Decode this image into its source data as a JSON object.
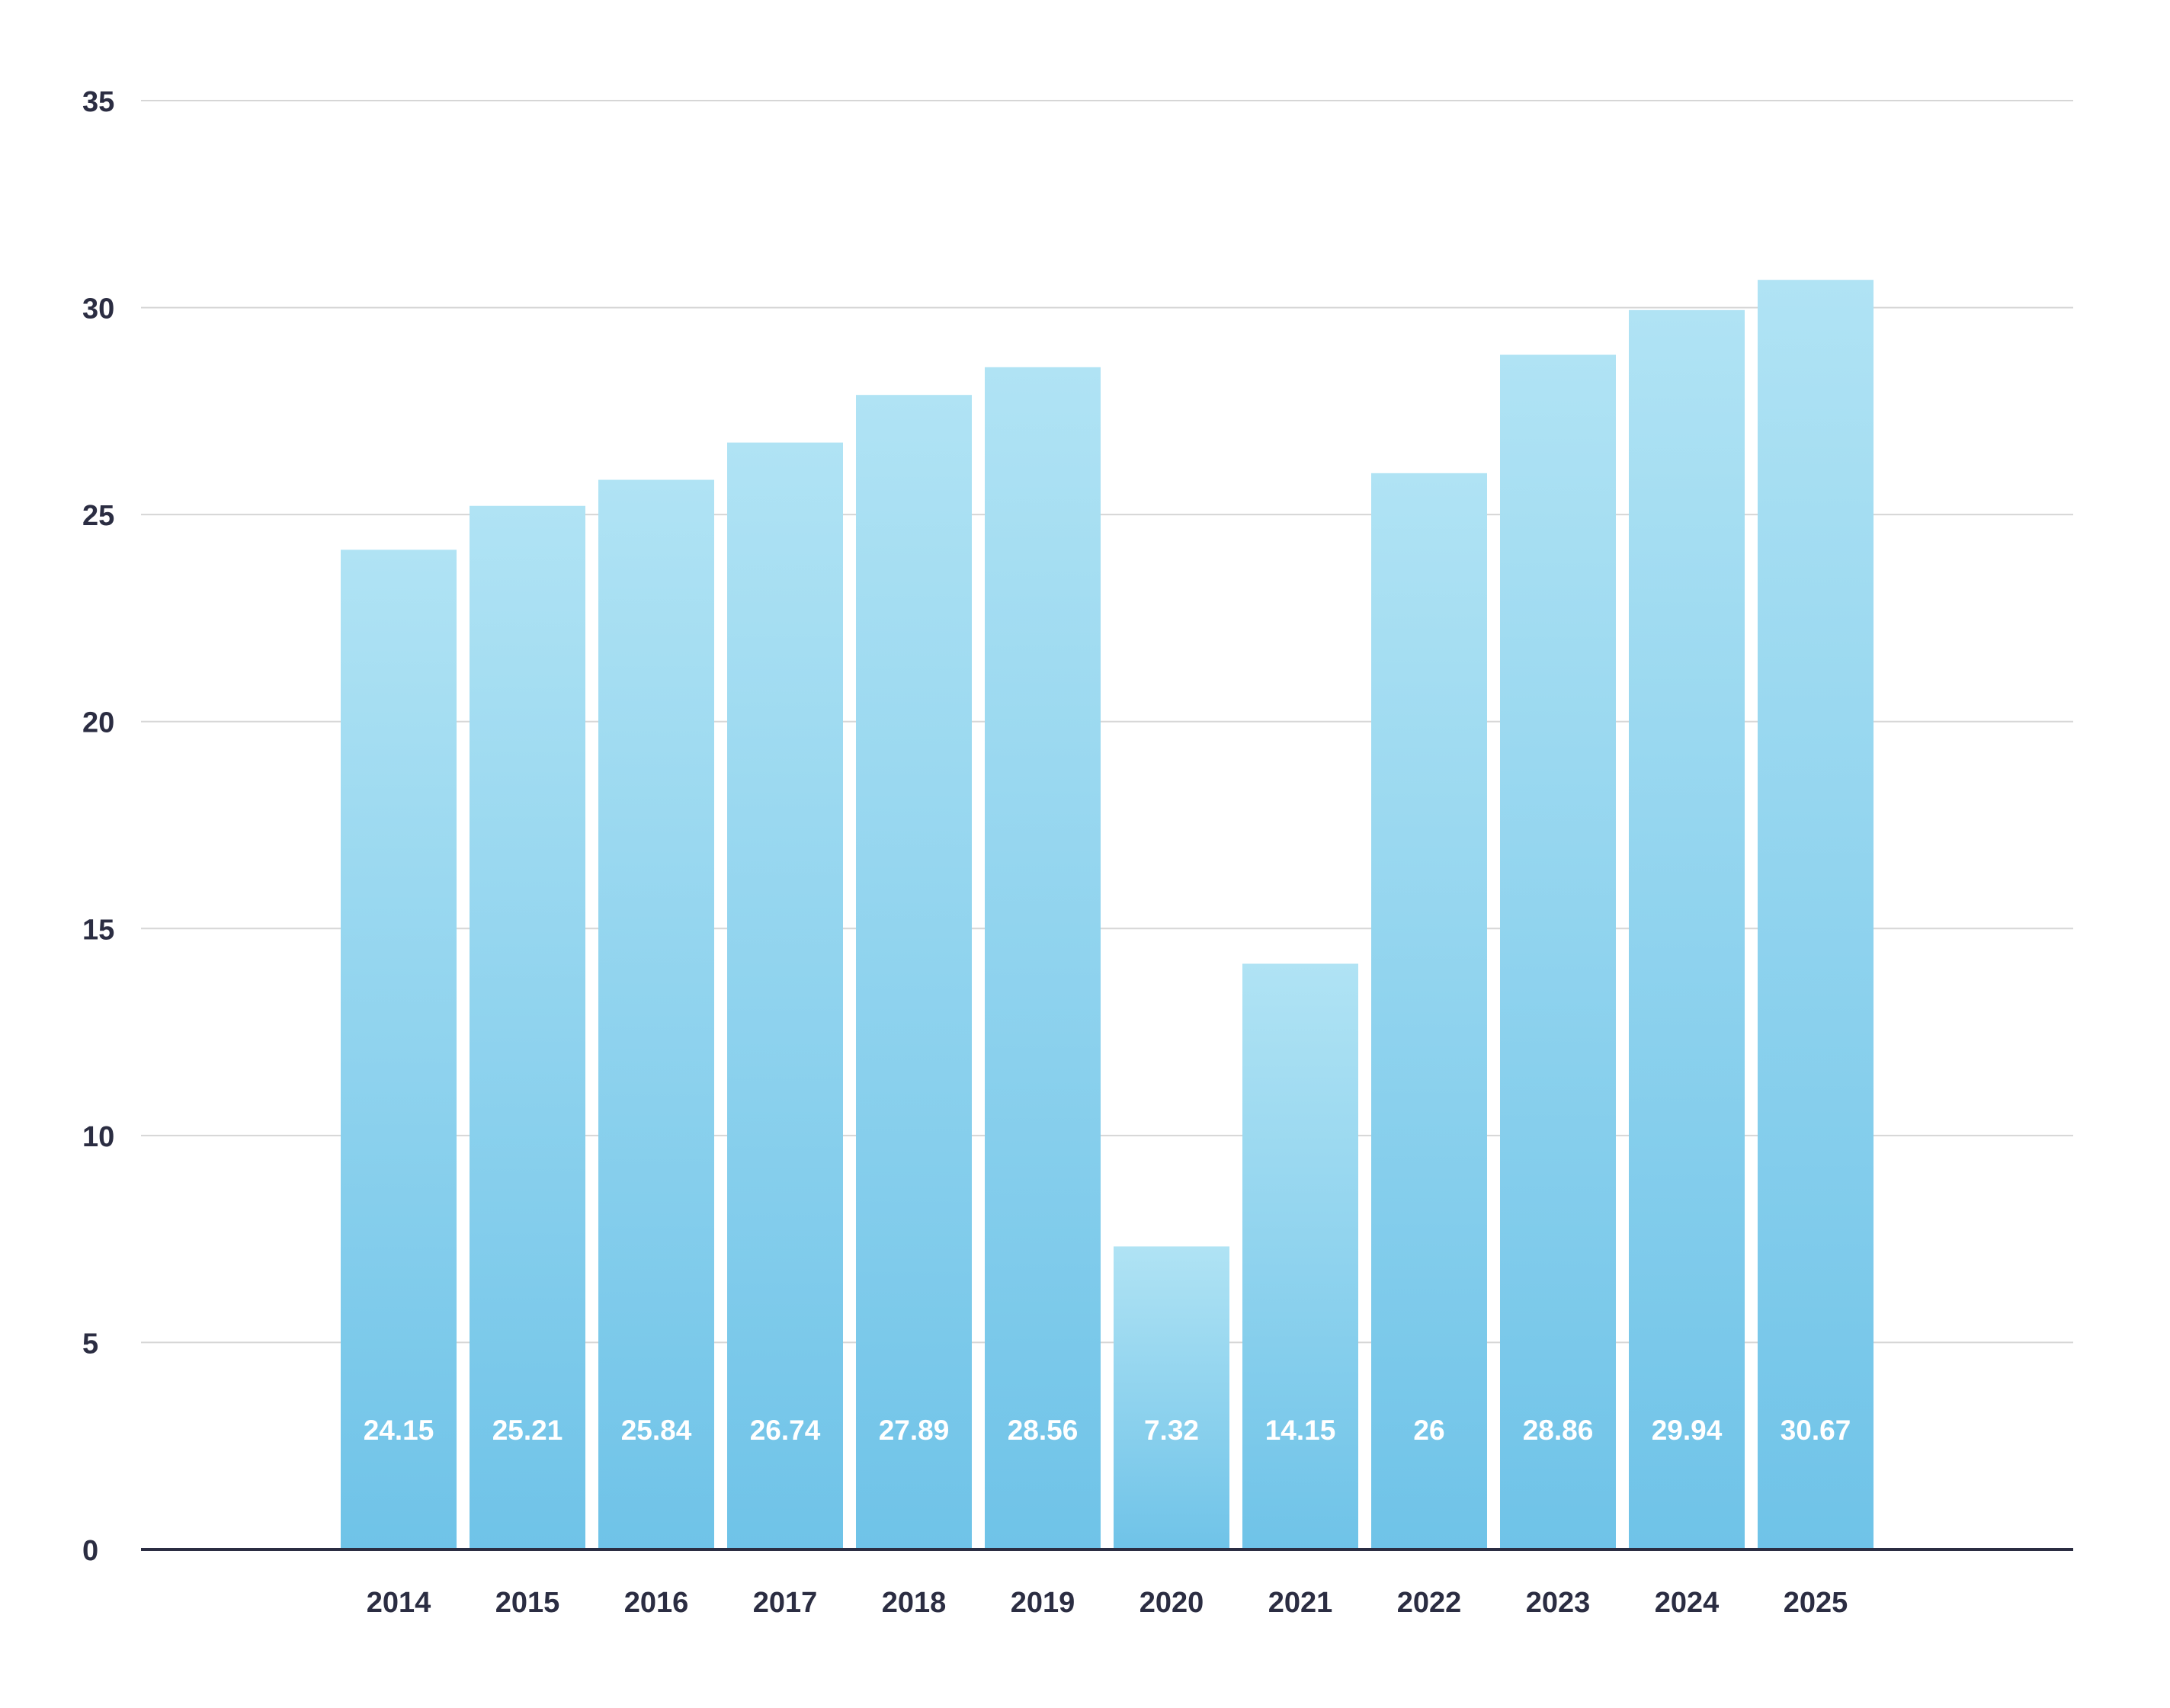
{
  "chart_data": {
    "type": "bar",
    "title": "",
    "xlabel": "",
    "ylabel": "",
    "categories": [
      "2014",
      "2015",
      "2016",
      "2017",
      "2018",
      "2019",
      "2020",
      "2021",
      "2022",
      "2023",
      "2024",
      "2025"
    ],
    "values": [
      24.15,
      25.21,
      25.84,
      26.74,
      27.89,
      28.56,
      7.32,
      14.15,
      26,
      28.86,
      29.94,
      30.67
    ],
    "data_labels": [
      "24.15",
      "25.21",
      "25.84",
      "26.74",
      "27.89",
      "28.56",
      "7.32",
      "14.15",
      "26",
      "28.86",
      "29.94",
      "30.67"
    ],
    "ylim": [
      0,
      35
    ],
    "yticks": [
      "0",
      "5",
      "10",
      "15",
      "20",
      "25",
      "30",
      "35"
    ],
    "grid": true,
    "legend": "none",
    "colors": {
      "bar_top": "#b0e3f4",
      "bar_bottom": "#6fc3e8",
      "axis": "#2b2d42",
      "grid": "#d6d6d6",
      "label_text": "#ffffff"
    }
  }
}
